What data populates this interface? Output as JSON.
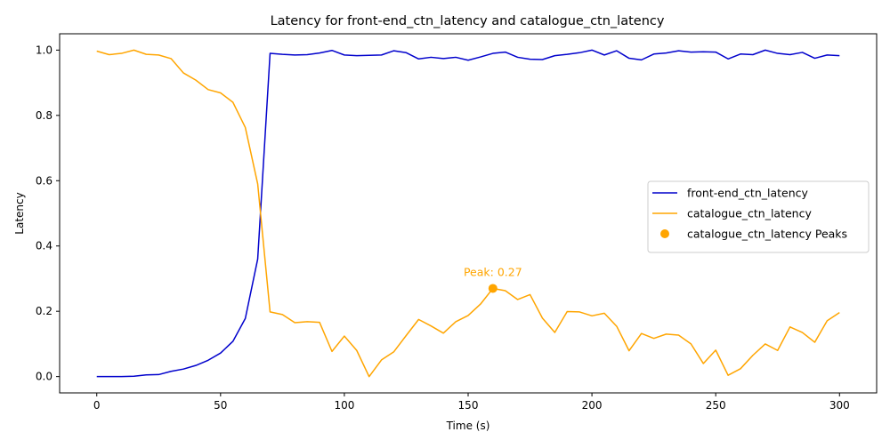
{
  "chart_data": {
    "type": "line",
    "title": "Latency for front-end_ctn_latency and catalogue_ctn_latency",
    "xlabel": "Time (s)",
    "ylabel": "Latency",
    "xlim": [
      -15,
      315
    ],
    "ylim": [
      -0.05,
      1.05
    ],
    "xticks": [
      0,
      50,
      100,
      150,
      200,
      250,
      300
    ],
    "yticks": [
      0.0,
      0.2,
      0.4,
      0.6,
      0.8,
      1.0
    ],
    "x": [
      0,
      5,
      10,
      15,
      20,
      25,
      30,
      35,
      40,
      45,
      50,
      55,
      60,
      65,
      70,
      75,
      80,
      85,
      90,
      95,
      100,
      105,
      110,
      115,
      120,
      125,
      130,
      135,
      140,
      145,
      150,
      155,
      160,
      165,
      170,
      175,
      180,
      185,
      190,
      195,
      200,
      205,
      210,
      215,
      220,
      225,
      230,
      235,
      240,
      245,
      250,
      255,
      260,
      265,
      270,
      275,
      280,
      285,
      290,
      295,
      300
    ],
    "series": [
      {
        "name": "front-end_ctn_latency",
        "color": "#0000cc",
        "values": [
          0.0,
          0.0,
          0.0,
          0.001,
          0.005,
          0.006,
          0.016,
          0.023,
          0.034,
          0.05,
          0.072,
          0.108,
          0.178,
          0.36,
          0.99,
          0.987,
          0.985,
          0.986,
          0.991,
          0.999,
          0.985,
          0.983,
          0.984,
          0.985,
          0.998,
          0.992,
          0.973,
          0.978,
          0.974,
          0.978,
          0.969,
          0.979,
          0.99,
          0.994,
          0.978,
          0.972,
          0.971,
          0.983,
          0.987,
          0.992,
          1.0,
          0.985,
          0.998,
          0.975,
          0.97,
          0.988,
          0.991,
          0.998,
          0.994,
          0.995,
          0.994,
          0.973,
          0.988,
          0.986,
          1.0,
          0.99,
          0.986,
          0.993,
          0.975,
          0.985,
          0.983
        ]
      },
      {
        "name": "catalogue_ctn_latency",
        "color": "#ffa500",
        "values": [
          0.997,
          0.986,
          0.99,
          1.0,
          0.987,
          0.985,
          0.974,
          0.93,
          0.908,
          0.879,
          0.869,
          0.84,
          0.763,
          0.59,
          0.198,
          0.19,
          0.165,
          0.168,
          0.166,
          0.077,
          0.124,
          0.08,
          0.0,
          0.051,
          0.076,
          0.126,
          0.175,
          0.155,
          0.133,
          0.168,
          0.187,
          0.222,
          0.27,
          0.263,
          0.236,
          0.251,
          0.179,
          0.135,
          0.199,
          0.198,
          0.186,
          0.194,
          0.154,
          0.079,
          0.132,
          0.117,
          0.13,
          0.127,
          0.1,
          0.04,
          0.081,
          0.004,
          0.024,
          0.065,
          0.1,
          0.08,
          0.152,
          0.135,
          0.105,
          0.171,
          0.196
        ]
      }
    ],
    "peaks": {
      "name": "catalogue_ctn_latency Peaks",
      "color": "#ffa500",
      "points": [
        {
          "x": 160,
          "y": 0.27
        }
      ],
      "annotation": "Peak: 0.27"
    },
    "legend_position": "center-right",
    "grid": false
  }
}
